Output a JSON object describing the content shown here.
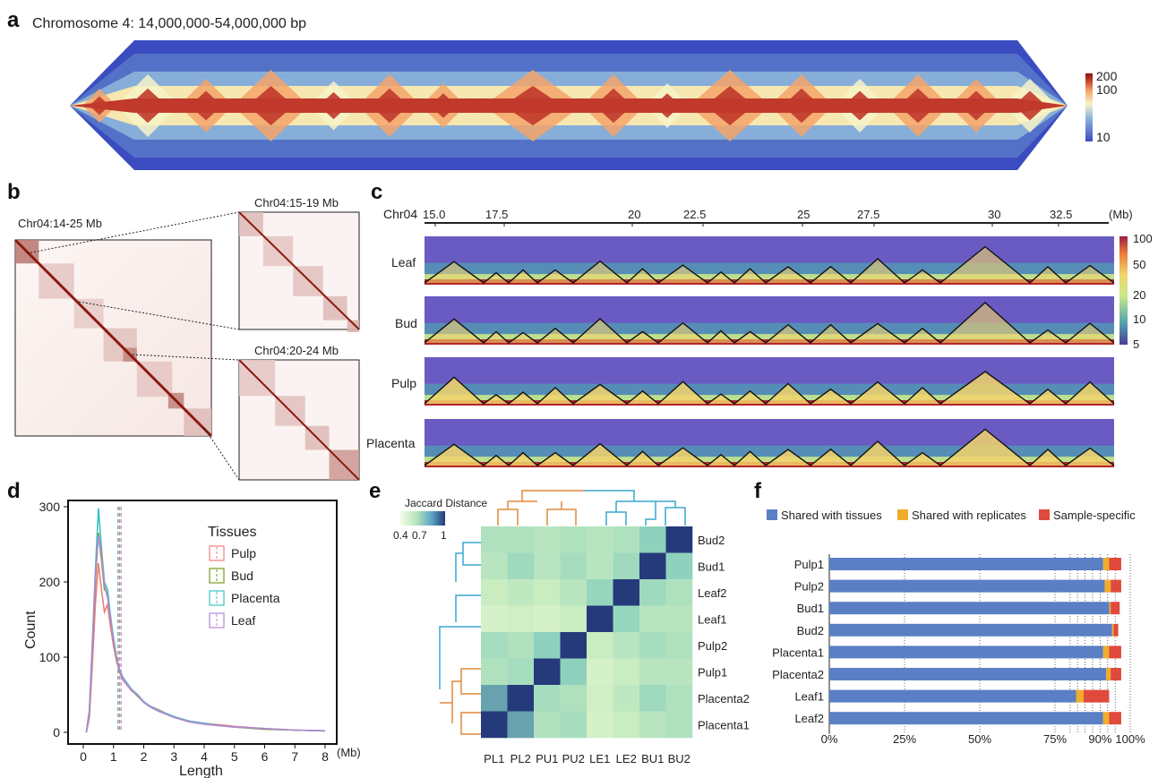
{
  "panel_labels": {
    "a": "a",
    "b": "b",
    "c": "c",
    "d": "d",
    "e": "e",
    "f": "f"
  },
  "panel_a": {
    "title": "Chromosome 4: 14,000,000-54,000,000 bp",
    "colorbar_ticks": [
      "200",
      "100",
      "10"
    ],
    "colors": [
      "#3b4cc0",
      "#8fb8dc",
      "#f7f3c8",
      "#f4a36a",
      "#c0392b",
      "#8b1010"
    ]
  },
  "panel_b": {
    "main_title": "Chr04:14-25 Mb",
    "zoom1_title": "Chr04:15-19 Mb",
    "zoom2_title": "Chr04:20-24 Mb",
    "colors": [
      "#fbf3f1",
      "#8b1a10"
    ]
  },
  "panel_c": {
    "chrom_label": "Chr04",
    "axis_ticks": [
      "15.0",
      "17.5",
      "20",
      "22.5",
      "25",
      "27.5",
      "30",
      "32.5"
    ],
    "axis_unit": "(Mb)",
    "tracks": [
      "Leaf",
      "Bud",
      "Pulp",
      "Placenta"
    ],
    "colorbar_ticks": [
      "100",
      "50",
      "20",
      "10",
      "5"
    ],
    "colors": [
      "#6a5bc3",
      "#4fa3b0",
      "#c9e88a",
      "#f2d46b",
      "#e9773a",
      "#b3262a"
    ]
  },
  "chart_data": [
    {
      "panel": "d",
      "type": "line",
      "xlabel": "Length",
      "ylabel": "Count",
      "x_unit": "(Mb)",
      "xlim": [
        0,
        8
      ],
      "ylim": [
        0,
        300
      ],
      "x_ticks": [
        "0",
        "1",
        "2",
        "3",
        "4",
        "5",
        "6",
        "7",
        "8"
      ],
      "y_ticks": [
        "0",
        "100",
        "200",
        "300"
      ],
      "legend_title": "Tissues",
      "legend_position": "top-right",
      "x": [
        0.1,
        0.2,
        0.3,
        0.4,
        0.5,
        0.6,
        0.7,
        0.8,
        0.9,
        1.0,
        1.1,
        1.2,
        1.3,
        1.4,
        1.6,
        1.8,
        2.0,
        2.2,
        2.5,
        3.0,
        3.5,
        4.0,
        4.5,
        5.0,
        6.0,
        7.0,
        8.0
      ],
      "series": [
        {
          "name": "Pulp",
          "color": "#ef7f7a",
          "values": [
            0,
            20,
            90,
            170,
            225,
            190,
            160,
            170,
            140,
            115,
            95,
            80,
            70,
            65,
            55,
            50,
            40,
            35,
            30,
            20,
            15,
            12,
            10,
            8,
            5,
            3,
            2
          ],
          "median": 1.2
        },
        {
          "name": "Bud",
          "color": "#7a9a1a",
          "values": [
            0,
            25,
            110,
            200,
            265,
            230,
            190,
            185,
            150,
            120,
            98,
            82,
            72,
            66,
            56,
            48,
            40,
            34,
            28,
            20,
            14,
            11,
            9,
            7,
            4,
            3,
            2
          ],
          "median": 1.15
        },
        {
          "name": "Placenta",
          "color": "#3cc0c0",
          "values": [
            0,
            30,
            120,
            215,
            298,
            245,
            200,
            190,
            155,
            125,
            100,
            84,
            74,
            68,
            57,
            50,
            41,
            35,
            29,
            21,
            15,
            12,
            9,
            7,
            5,
            3,
            2
          ],
          "median": 1.15
        },
        {
          "name": "Leaf",
          "color": "#b487d6",
          "values": [
            0,
            28,
            115,
            210,
            262,
            240,
            195,
            180,
            150,
            122,
            100,
            83,
            72,
            66,
            56,
            49,
            40,
            34,
            28,
            20,
            14,
            11,
            9,
            7,
            5,
            3,
            2
          ],
          "median": 1.25
        }
      ]
    },
    {
      "panel": "e",
      "type": "heatmap",
      "title": "Jaccard Distance",
      "colorbar_ticks": [
        "0.4",
        "0.7",
        "1"
      ],
      "x_labels": [
        "PL1",
        "PL2",
        "PU1",
        "PU2",
        "LE1",
        "LE2",
        "BU1",
        "BU2"
      ],
      "y_labels": [
        "Bud2",
        "Bud1",
        "Leaf2",
        "Leaf1",
        "Pulp2",
        "Pulp1",
        "Placenta2",
        "Placenta1"
      ],
      "values": [
        [
          0.62,
          0.62,
          0.6,
          0.62,
          0.6,
          0.62,
          0.7,
          1.0
        ],
        [
          0.6,
          0.66,
          0.6,
          0.64,
          0.6,
          0.66,
          1.0,
          0.7
        ],
        [
          0.56,
          0.58,
          0.56,
          0.6,
          0.68,
          1.0,
          0.66,
          0.62
        ],
        [
          0.52,
          0.54,
          0.52,
          0.56,
          1.0,
          0.68,
          0.6,
          0.6
        ],
        [
          0.64,
          0.62,
          0.7,
          1.0,
          0.56,
          0.6,
          0.64,
          0.62
        ],
        [
          0.62,
          0.64,
          1.0,
          0.7,
          0.52,
          0.56,
          0.6,
          0.6
        ],
        [
          0.76,
          1.0,
          0.64,
          0.62,
          0.54,
          0.58,
          0.66,
          0.62
        ],
        [
          1.0,
          0.76,
          0.62,
          0.64,
          0.52,
          0.56,
          0.6,
          0.62
        ]
      ],
      "colors": [
        "#f4fbe8",
        "#cdeec1",
        "#8ed2bd",
        "#2e5a97",
        "#253a7a"
      ]
    },
    {
      "panel": "f",
      "type": "bar",
      "orientation": "horizontal",
      "stacked": true,
      "categories": [
        "Pulp1",
        "Pulp2",
        "Bud1",
        "Bud2",
        "Placenta1",
        "Placenta2",
        "Leaf1",
        "Leaf2"
      ],
      "x_ticks": [
        "0%",
        "25%",
        "50%",
        "75%",
        "90%",
        "100%"
      ],
      "xlim": [
        0,
        100
      ],
      "legend_position": "top",
      "series": [
        {
          "name": "Shared with tissues",
          "color": "#5b7fc4",
          "values": [
            91,
            91.5,
            93,
            94,
            91,
            92,
            82,
            91
          ]
        },
        {
          "name": "Shared with replicates",
          "color": "#f0ac2b",
          "values": [
            2,
            2,
            0.5,
            0.5,
            2,
            1.5,
            2.5,
            2
          ]
        },
        {
          "name": "Sample-specific",
          "color": "#df4a3d",
          "values": [
            4,
            3.5,
            3,
            1.5,
            4,
            3.5,
            8.5,
            4
          ]
        }
      ]
    }
  ]
}
